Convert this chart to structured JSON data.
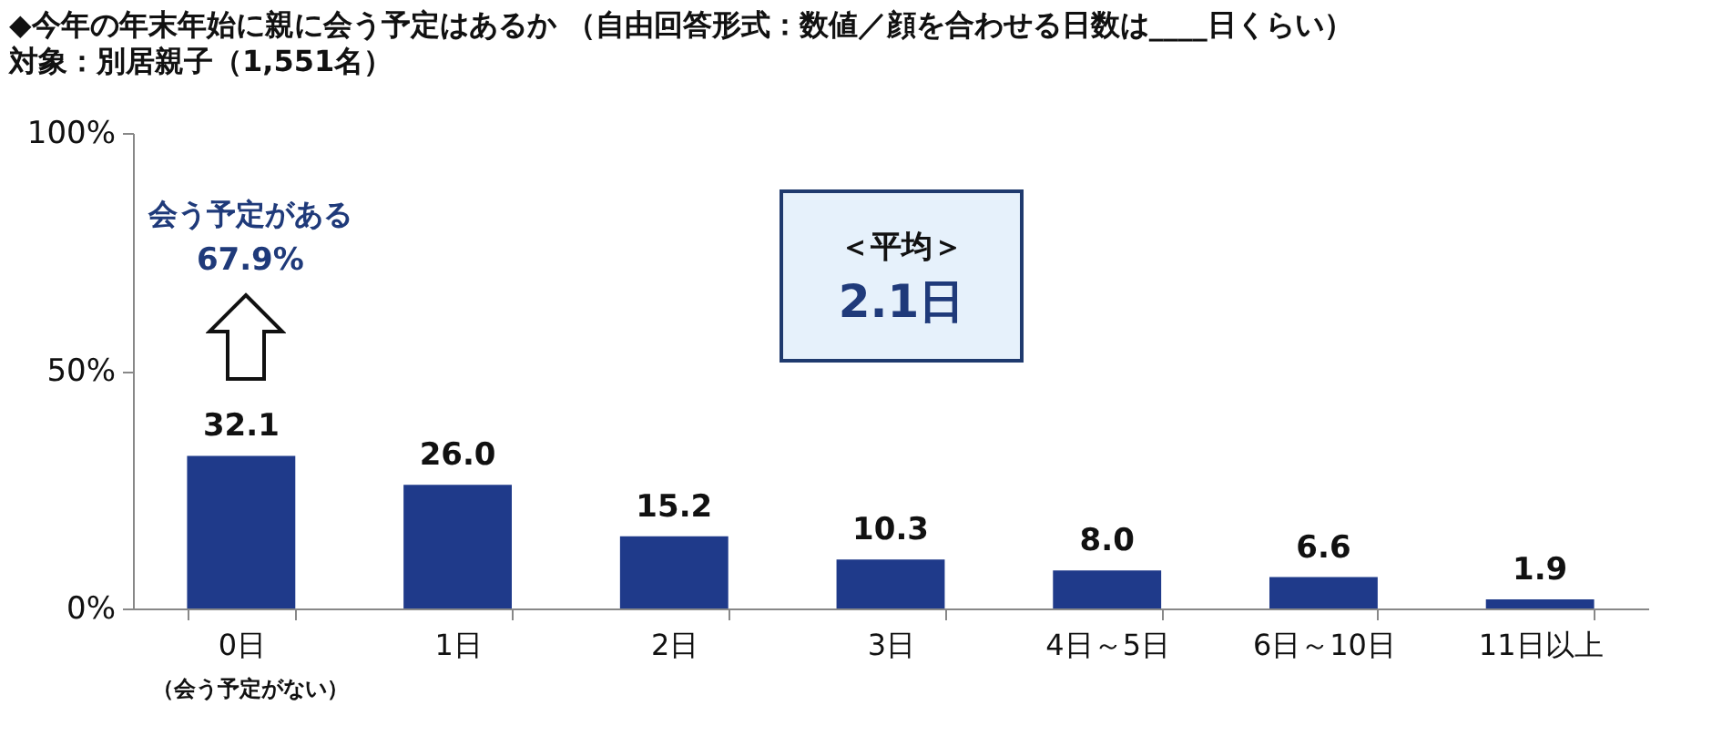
{
  "chart_data": {
    "type": "bar",
    "title": "◆今年の年末年始に親に会う予定はあるか （自由回答形式：数値／顔を合わせる日数は____日くらい）",
    "subtitle": "対象：別居親子（1,551名）",
    "categories": [
      "0日",
      "1日",
      "2日",
      "3日",
      "4日～5日",
      "6日～10日",
      "11日以上"
    ],
    "values": [
      32.1,
      26.0,
      15.2,
      10.3,
      8.0,
      6.6,
      1.9
    ],
    "color": "#1f3a8a",
    "value_labels": [
      "32.1",
      "26.0",
      "15.2",
      "10.3",
      "8.0",
      "6.6",
      "1.9"
    ],
    "ylim": [
      0,
      100
    ],
    "yticks": [
      {
        "value": 0,
        "label": "0%"
      },
      {
        "value": 50,
        "label": "50%"
      },
      {
        "value": 100,
        "label": "100%"
      }
    ],
    "grid": false,
    "annotations": [
      "会う予定がある",
      "67.9%",
      "＜平均＞",
      "2.1日",
      "（会う予定がない）"
    ]
  }
}
